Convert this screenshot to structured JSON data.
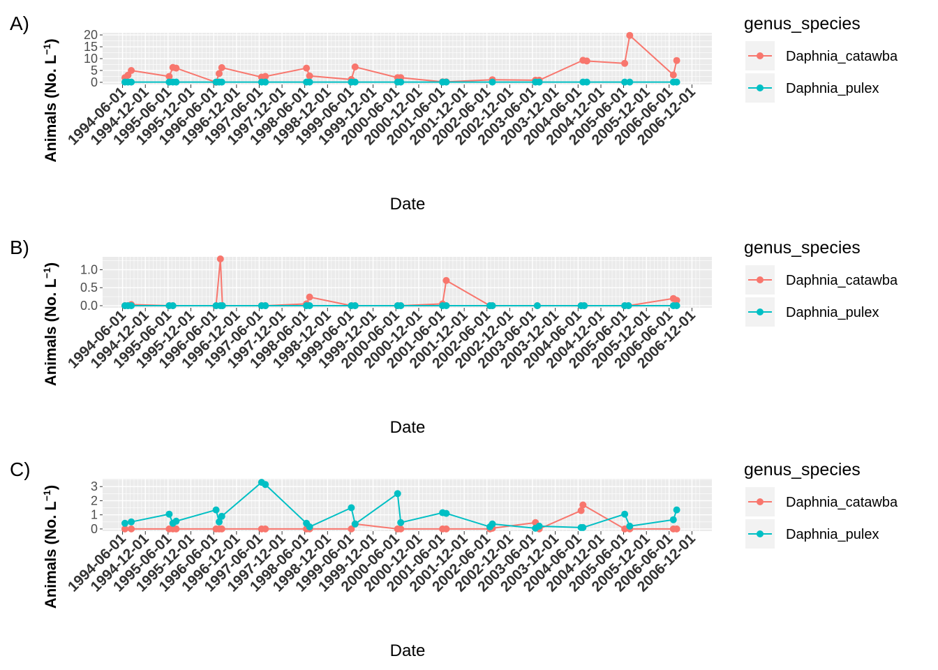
{
  "chart_data": [
    {
      "type": "line",
      "panel_label": "A)",
      "xlabel": "Date",
      "ylabel": "Animals (No. L",
      "ylabel_sup": "−1",
      "ylabel_close": ")",
      "ylim": [
        0,
        20
      ],
      "y_ticks": [
        0,
        5,
        10,
        15,
        20
      ],
      "x_range": [
        "1994-06-01",
        "2006-12-01"
      ],
      "x_ticks": [
        "1994-06-01",
        "1994-12-01",
        "1995-06-01",
        "1995-12-01",
        "1996-06-01",
        "1996-12-01",
        "1997-06-01",
        "1997-12-01",
        "1998-06-01",
        "1998-12-01",
        "1999-06-01",
        "1999-12-01",
        "2000-06-01",
        "2000-12-01",
        "2001-06-01",
        "2001-12-01",
        "2002-06-01",
        "2002-12-01",
        "2003-06-01",
        "2003-12-01",
        "2004-06-01",
        "2004-12-01",
        "2005-06-01",
        "2005-12-01",
        "2006-06-01",
        "2006-12-01"
      ],
      "grid": true,
      "legend_title": "genus_species",
      "legend_position": "right",
      "series": [
        {
          "name": "Daphnia_catawba",
          "color": "#F8766D",
          "x": [
            "1994-06-20",
            "1994-07-15",
            "1994-08-10",
            "1995-06-10",
            "1995-07-10",
            "1995-08-05",
            "1996-06-20",
            "1996-07-15",
            "1996-08-05",
            "1997-06-20",
            "1997-07-20",
            "1998-06-15",
            "1998-07-10",
            "1999-06-10",
            "1999-07-10",
            "2000-06-15",
            "2000-07-10",
            "2001-06-10",
            "2001-07-10",
            "2002-07-15",
            "2003-06-25",
            "2003-07-25",
            "2004-07-10",
            "2004-08-10",
            "2005-06-10",
            "2005-07-20",
            "2006-07-05",
            "2006-08-01"
          ],
          "values": [
            2,
            3,
            5,
            2.5,
            6.3,
            6,
            0,
            3.7,
            6.2,
            2.2,
            2.5,
            6,
            2.7,
            1.2,
            6.5,
            2,
            2,
            0.2,
            0.2,
            1.1,
            0.9,
            0.9,
            9.3,
            9,
            8,
            19.8,
            3.1,
            9.2
          ]
        },
        {
          "name": "Daphnia_pulex",
          "color": "#00BFC4",
          "x": [
            "1994-06-20",
            "1994-07-15",
            "1994-08-10",
            "1995-06-10",
            "1995-07-10",
            "1995-08-05",
            "1996-06-20",
            "1996-07-15",
            "1996-08-05",
            "1997-06-20",
            "1997-07-20",
            "1998-06-15",
            "1998-07-10",
            "1999-06-10",
            "1999-07-10",
            "2000-06-15",
            "2000-07-10",
            "2001-06-10",
            "2001-07-10",
            "2002-07-15",
            "2003-06-25",
            "2003-07-25",
            "2004-07-10",
            "2004-08-10",
            "2005-06-10",
            "2005-07-20",
            "2006-07-05",
            "2006-08-01"
          ],
          "values": [
            0.1,
            0.1,
            0.1,
            0.1,
            0.1,
            0.1,
            0.1,
            0.1,
            0.1,
            0.1,
            0.1,
            0.1,
            0.1,
            0.1,
            0.1,
            0.1,
            0.1,
            0.1,
            0.1,
            0.1,
            0.1,
            0.1,
            0.1,
            0.1,
            0.1,
            0.1,
            0.1,
            0.1
          ]
        }
      ]
    },
    {
      "type": "line",
      "panel_label": "B)",
      "xlabel": "Date",
      "ylabel": "Animals (No. L",
      "ylabel_sup": "−1",
      "ylabel_close": ")",
      "ylim": [
        0,
        1.3
      ],
      "y_ticks": [
        0.0,
        0.5,
        1.0
      ],
      "y_tick_labels": [
        "0.0",
        "0.5",
        "1.0"
      ],
      "x_range": [
        "1994-06-01",
        "2006-12-01"
      ],
      "x_ticks": [
        "1994-06-01",
        "1994-12-01",
        "1995-06-01",
        "1995-12-01",
        "1996-06-01",
        "1996-12-01",
        "1997-06-01",
        "1997-12-01",
        "1998-06-01",
        "1998-12-01",
        "1999-06-01",
        "1999-12-01",
        "2000-06-01",
        "2000-12-01",
        "2001-06-01",
        "2001-12-01",
        "2002-06-01",
        "2002-12-01",
        "2003-06-01",
        "2003-12-01",
        "2004-06-01",
        "2004-12-01",
        "2005-06-01",
        "2005-12-01",
        "2006-06-01",
        "2006-12-01"
      ],
      "grid": true,
      "legend_title": "genus_species",
      "legend_position": "right",
      "series": [
        {
          "name": "Daphnia_catawba",
          "color": "#F8766D",
          "x": [
            "1994-06-20",
            "1994-07-15",
            "1994-08-10",
            "1995-06-10",
            "1995-07-10",
            "1996-06-20",
            "1996-07-25",
            "1996-08-10",
            "1997-06-20",
            "1997-07-20",
            "1998-06-15",
            "1998-07-10",
            "1999-06-10",
            "1999-07-10",
            "2000-06-15",
            "2000-07-10",
            "2001-06-10",
            "2001-07-10",
            "2002-06-25",
            "2002-07-15",
            "2003-07-10",
            "2004-06-25",
            "2004-07-20",
            "2005-06-10",
            "2005-07-10",
            "2006-07-05",
            "2006-08-01"
          ],
          "values": [
            0,
            0,
            0.03,
            0,
            0,
            0,
            1.3,
            0,
            0,
            0,
            0.05,
            0.24,
            0,
            0,
            0,
            0,
            0.05,
            0.7,
            0,
            0,
            0,
            0,
            0,
            0,
            0,
            0.2,
            0.15
          ]
        },
        {
          "name": "Daphnia_pulex",
          "color": "#00BFC4",
          "x": [
            "1994-06-20",
            "1994-07-15",
            "1994-08-10",
            "1995-06-10",
            "1995-07-10",
            "1996-06-20",
            "1996-07-25",
            "1996-08-10",
            "1997-06-20",
            "1997-07-20",
            "1998-06-15",
            "1998-07-10",
            "1999-06-10",
            "1999-07-10",
            "2000-06-15",
            "2000-07-10",
            "2001-06-10",
            "2001-07-10",
            "2002-06-25",
            "2002-07-15",
            "2003-07-10",
            "2004-06-25",
            "2004-07-20",
            "2005-06-10",
            "2005-07-10",
            "2006-07-05",
            "2006-08-01"
          ],
          "values": [
            0,
            0,
            0,
            0,
            0,
            0,
            0,
            0,
            0,
            0,
            0,
            0,
            0,
            0,
            0,
            0,
            0,
            0,
            0,
            0,
            0,
            0,
            0,
            0,
            0,
            0,
            0
          ]
        }
      ]
    },
    {
      "type": "line",
      "panel_label": "C)",
      "xlabel": "Date",
      "ylabel": "Animals (No. L",
      "ylabel_sup": "−1",
      "ylabel_close": ")",
      "ylim": [
        0,
        3.4
      ],
      "y_ticks": [
        0,
        1,
        2,
        3
      ],
      "x_range": [
        "1994-06-01",
        "2006-12-01"
      ],
      "x_ticks": [
        "1994-06-01",
        "1994-12-01",
        "1995-06-01",
        "1995-12-01",
        "1996-06-01",
        "1996-12-01",
        "1997-06-01",
        "1997-12-01",
        "1998-06-01",
        "1998-12-01",
        "1999-06-01",
        "1999-12-01",
        "2000-06-01",
        "2000-12-01",
        "2001-06-01",
        "2001-12-01",
        "2002-06-01",
        "2002-12-01",
        "2003-06-01",
        "2003-12-01",
        "2004-06-01",
        "2004-12-01",
        "2005-06-01",
        "2005-12-01",
        "2006-06-01",
        "2006-12-01"
      ],
      "grid": true,
      "legend_title": "genus_species",
      "legend_position": "right",
      "series": [
        {
          "name": "Daphnia_catawba",
          "color": "#F8766D",
          "x": [
            "1994-06-20",
            "1994-08-10",
            "1995-06-10",
            "1995-07-10",
            "1995-08-05",
            "1996-06-20",
            "1996-07-15",
            "1996-08-05",
            "1997-06-20",
            "1997-07-20",
            "1998-06-15",
            "1998-07-10",
            "1999-06-10",
            "1999-07-10",
            "2000-06-15",
            "2000-07-10",
            "2001-06-10",
            "2001-07-10",
            "2002-06-25",
            "2002-07-15",
            "2003-06-25",
            "2003-07-25",
            "2004-06-25",
            "2004-07-10",
            "2005-06-10",
            "2005-07-20",
            "2006-07-05",
            "2006-08-01"
          ],
          "values": [
            0,
            0,
            0,
            0,
            0,
            0,
            0,
            0,
            0,
            0,
            0,
            0,
            0,
            0.35,
            0,
            0,
            0,
            0,
            0,
            0.05,
            0.45,
            0,
            1.3,
            1.7,
            0,
            0,
            0,
            0
          ]
        },
        {
          "name": "Daphnia_pulex",
          "color": "#00BFC4",
          "x": [
            "1994-06-20",
            "1994-08-10",
            "1995-06-10",
            "1995-07-10",
            "1995-08-05",
            "1996-06-20",
            "1996-07-15",
            "1996-08-05",
            "1997-06-20",
            "1997-07-20",
            "1998-06-15",
            "1998-07-10",
            "1999-06-10",
            "1999-07-10",
            "2000-06-15",
            "2000-07-10",
            "2001-06-10",
            "2001-07-10",
            "2002-06-25",
            "2002-07-15",
            "2003-06-25",
            "2003-07-25",
            "2004-06-25",
            "2004-07-10",
            "2005-06-10",
            "2005-07-20",
            "2006-07-05",
            "2006-08-01"
          ],
          "values": [
            0.4,
            0.5,
            1.05,
            0.4,
            0.55,
            1.35,
            0.5,
            0.9,
            3.3,
            3.15,
            0.4,
            0.15,
            1.5,
            0.35,
            2.5,
            0.45,
            1.15,
            1.1,
            0.15,
            0.35,
            0.05,
            0.2,
            0.1,
            0.1,
            1.05,
            0.2,
            0.65,
            1.35
          ]
        }
      ]
    }
  ]
}
